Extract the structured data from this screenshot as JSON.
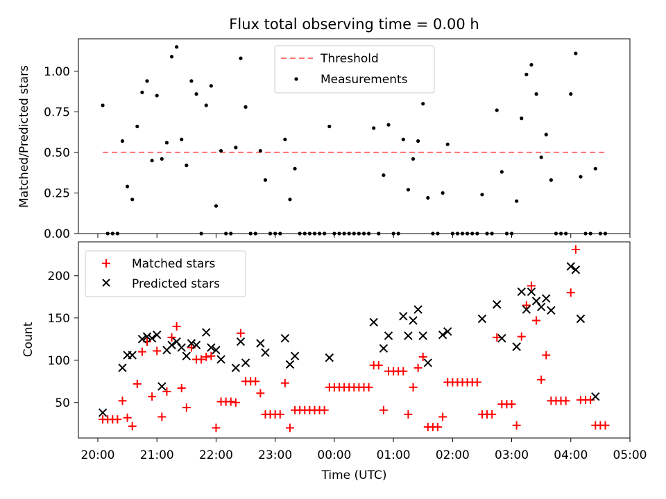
{
  "chart_data": [
    {
      "type": "scatter",
      "title": "Flux total observing time = 0.00 h",
      "ylabel": "Matched/Predicted stars",
      "ylim": [
        0,
        1.2
      ],
      "yticks": [
        "0.00",
        "0.25",
        "0.50",
        "0.75",
        "1.00"
      ],
      "threshold": 0.5,
      "legend": {
        "placement": "upper-center",
        "entries": [
          "Threshold",
          "Measurements"
        ]
      },
      "series": [
        {
          "name": "Measurements",
          "points": [
            [
              "20:05",
              0.79
            ],
            [
              "20:10",
              0
            ],
            [
              "20:15",
              0
            ],
            [
              "20:20",
              0
            ],
            [
              "20:25",
              0.57
            ],
            [
              "20:30",
              0.29
            ],
            [
              "20:35",
              0.21
            ],
            [
              "20:40",
              0.66
            ],
            [
              "20:45",
              0.87
            ],
            [
              "20:50",
              0.94
            ],
            [
              "20:55",
              0.45
            ],
            [
              "21:00",
              0.85
            ],
            [
              "21:05",
              0.46
            ],
            [
              "21:10",
              0.56
            ],
            [
              "21:15",
              1.09
            ],
            [
              "21:20",
              1.15
            ],
            [
              "21:25",
              0.58
            ],
            [
              "21:30",
              0.42
            ],
            [
              "21:35",
              0.94
            ],
            [
              "21:40",
              0.86
            ],
            [
              "21:45",
              0
            ],
            [
              "21:50",
              0.79
            ],
            [
              "21:55",
              0.91
            ],
            [
              "22:00",
              0.17
            ],
            [
              "22:05",
              0.51
            ],
            [
              "22:10",
              0
            ],
            [
              "22:15",
              0
            ],
            [
              "22:20",
              0.53
            ],
            [
              "22:25",
              1.08
            ],
            [
              "22:30",
              0.78
            ],
            [
              "22:35",
              0
            ],
            [
              "22:40",
              0
            ],
            [
              "22:45",
              0.51
            ],
            [
              "22:50",
              0.33
            ],
            [
              "22:55",
              0
            ],
            [
              "23:00",
              0
            ],
            [
              "23:05",
              0
            ],
            [
              "23:10",
              0.58
            ],
            [
              "23:15",
              0.21
            ],
            [
              "23:20",
              0.4
            ],
            [
              "23:25",
              0
            ],
            [
              "23:30",
              0
            ],
            [
              "23:35",
              0
            ],
            [
              "23:40",
              0
            ],
            [
              "23:45",
              0
            ],
            [
              "23:50",
              0
            ],
            [
              "23:55",
              0.66
            ],
            [
              "00:00",
              0
            ],
            [
              "00:05",
              0
            ],
            [
              "00:10",
              0
            ],
            [
              "00:15",
              0
            ],
            [
              "00:20",
              0
            ],
            [
              "00:25",
              0
            ],
            [
              "00:30",
              0
            ],
            [
              "00:35",
              0
            ],
            [
              "00:40",
              0.65
            ],
            [
              "00:45",
              0
            ],
            [
              "00:50",
              0.36
            ],
            [
              "00:55",
              0.67
            ],
            [
              "01:00",
              0
            ],
            [
              "01:05",
              0
            ],
            [
              "01:10",
              0.58
            ],
            [
              "01:15",
              0.27
            ],
            [
              "01:20",
              0.46
            ],
            [
              "01:25",
              0.57
            ],
            [
              "01:30",
              0.8
            ],
            [
              "01:35",
              0.22
            ],
            [
              "01:40",
              0
            ],
            [
              "01:45",
              0
            ],
            [
              "01:50",
              0.25
            ],
            [
              "01:55",
              0.55
            ],
            [
              "02:00",
              0
            ],
            [
              "02:05",
              0
            ],
            [
              "02:10",
              0
            ],
            [
              "02:15",
              0
            ],
            [
              "02:20",
              0
            ],
            [
              "02:25",
              0
            ],
            [
              "02:30",
              0.24
            ],
            [
              "02:35",
              0
            ],
            [
              "02:40",
              0
            ],
            [
              "02:45",
              0.76
            ],
            [
              "02:50",
              0.38
            ],
            [
              "02:55",
              0
            ],
            [
              "03:00",
              0
            ],
            [
              "03:05",
              0.2
            ],
            [
              "03:10",
              0.71
            ],
            [
              "03:15",
              0.98
            ],
            [
              "03:20",
              1.04
            ],
            [
              "03:25",
              0.86
            ],
            [
              "03:30",
              0.47
            ],
            [
              "03:35",
              0.61
            ],
            [
              "03:40",
              0.33
            ],
            [
              "03:45",
              0
            ],
            [
              "03:50",
              0
            ],
            [
              "03:55",
              0
            ],
            [
              "04:00",
              0.86
            ],
            [
              "04:05",
              1.11
            ],
            [
              "04:10",
              0.35
            ],
            [
              "04:15",
              0
            ],
            [
              "04:20",
              0
            ],
            [
              "04:25",
              0.4
            ],
            [
              "04:30",
              0
            ],
            [
              "04:35",
              0
            ]
          ]
        }
      ]
    },
    {
      "type": "scatter",
      "xlabel": "Time (UTC)",
      "ylabel": "Count",
      "ylim": [
        8,
        240
      ],
      "yticks": [
        "50",
        "100",
        "150",
        "200"
      ],
      "legend": {
        "placement": "upper-left",
        "entries": [
          "Matched stars",
          "Predicted stars"
        ]
      },
      "x_tick_labels": [
        "20:00",
        "21:00",
        "22:00",
        "23:00",
        "00:00",
        "01:00",
        "02:00",
        "03:00",
        "04:00",
        "05:00"
      ],
      "series": [
        {
          "name": "Matched stars",
          "color": "#ff0000",
          "points": [
            [
              "20:05",
              30
            ],
            [
              "20:10",
              30
            ],
            [
              "20:15",
              30
            ],
            [
              "20:20",
              30
            ],
            [
              "20:25",
              52
            ],
            [
              "20:30",
              32
            ],
            [
              "20:35",
              22
            ],
            [
              "20:40",
              72
            ],
            [
              "20:45",
              110
            ],
            [
              "20:50",
              122
            ],
            [
              "20:55",
              57
            ],
            [
              "21:00",
              111
            ],
            [
              "21:05",
              33
            ],
            [
              "21:10",
              63
            ],
            [
              "21:15",
              127
            ],
            [
              "21:20",
              140
            ],
            [
              "21:25",
              67
            ],
            [
              "21:30",
              44
            ],
            [
              "21:35",
              115
            ],
            [
              "21:40",
              101
            ],
            [
              "21:45",
              101
            ],
            [
              "21:50",
              104
            ],
            [
              "21:55",
              105
            ],
            [
              "22:00",
              20
            ],
            [
              "22:05",
              51
            ],
            [
              "22:10",
              51
            ],
            [
              "22:15",
              51
            ],
            [
              "22:20",
              50
            ],
            [
              "22:25",
              132
            ],
            [
              "22:30",
              75
            ],
            [
              "22:35",
              75
            ],
            [
              "22:40",
              75
            ],
            [
              "22:45",
              61
            ],
            [
              "22:50",
              36
            ],
            [
              "22:55",
              36
            ],
            [
              "23:00",
              36
            ],
            [
              "23:05",
              36
            ],
            [
              "23:10",
              73
            ],
            [
              "23:15",
              20
            ],
            [
              "23:20",
              41
            ],
            [
              "23:25",
              41
            ],
            [
              "23:30",
              41
            ],
            [
              "23:35",
              41
            ],
            [
              "23:40",
              41
            ],
            [
              "23:45",
              41
            ],
            [
              "23:50",
              41
            ],
            [
              "23:55",
              68
            ],
            [
              "00:00",
              68
            ],
            [
              "00:05",
              68
            ],
            [
              "00:10",
              68
            ],
            [
              "00:15",
              68
            ],
            [
              "00:20",
              68
            ],
            [
              "00:25",
              68
            ],
            [
              "00:30",
              68
            ],
            [
              "00:35",
              68
            ],
            [
              "00:40",
              94
            ],
            [
              "00:45",
              94
            ],
            [
              "00:50",
              41
            ],
            [
              "00:55",
              87
            ],
            [
              "01:00",
              87
            ],
            [
              "01:05",
              87
            ],
            [
              "01:10",
              87
            ],
            [
              "01:15",
              36
            ],
            [
              "01:20",
              68
            ],
            [
              "01:25",
              91
            ],
            [
              "01:30",
              104
            ],
            [
              "01:35",
              21
            ],
            [
              "01:40",
              21
            ],
            [
              "01:45",
              21
            ],
            [
              "01:50",
              33
            ],
            [
              "01:55",
              74
            ],
            [
              "02:00",
              74
            ],
            [
              "02:05",
              74
            ],
            [
              "02:10",
              74
            ],
            [
              "02:15",
              74
            ],
            [
              "02:20",
              74
            ],
            [
              "02:25",
              74
            ],
            [
              "02:30",
              36
            ],
            [
              "02:35",
              36
            ],
            [
              "02:40",
              36
            ],
            [
              "02:45",
              127
            ],
            [
              "02:50",
              48
            ],
            [
              "02:55",
              48
            ],
            [
              "03:00",
              48
            ],
            [
              "03:05",
              23
            ],
            [
              "03:10",
              128
            ],
            [
              "03:15",
              165
            ],
            [
              "03:20",
              188
            ],
            [
              "03:25",
              147
            ],
            [
              "03:30",
              77
            ],
            [
              "03:35",
              106
            ],
            [
              "03:40",
              52
            ],
            [
              "03:45",
              52
            ],
            [
              "03:50",
              52
            ],
            [
              "03:55",
              52
            ],
            [
              "04:00",
              180
            ],
            [
              "04:05",
              231
            ],
            [
              "04:10",
              53
            ],
            [
              "04:15",
              53
            ],
            [
              "04:20",
              53
            ],
            [
              "04:25",
              23
            ],
            [
              "04:30",
              23
            ],
            [
              "04:35",
              23
            ]
          ]
        },
        {
          "name": "Predicted stars",
          "color": "#000000",
          "points": [
            [
              "20:05",
              38
            ],
            [
              "20:25",
              91
            ],
            [
              "20:30",
              106
            ],
            [
              "20:35",
              106
            ],
            [
              "20:45",
              125
            ],
            [
              "20:50",
              128
            ],
            [
              "20:55",
              126
            ],
            [
              "21:00",
              130
            ],
            [
              "21:05",
              69
            ],
            [
              "21:10",
              112
            ],
            [
              "21:15",
              118
            ],
            [
              "21:20",
              122
            ],
            [
              "21:25",
              115
            ],
            [
              "21:30",
              105
            ],
            [
              "21:35",
              120
            ],
            [
              "21:40",
              118
            ],
            [
              "21:50",
              133
            ],
            [
              "21:55",
              115
            ],
            [
              "22:00",
              112
            ],
            [
              "22:05",
              101
            ],
            [
              "22:20",
              91
            ],
            [
              "22:25",
              122
            ],
            [
              "22:30",
              97
            ],
            [
              "22:45",
              120
            ],
            [
              "22:50",
              109
            ],
            [
              "23:10",
              126
            ],
            [
              "23:15",
              95
            ],
            [
              "23:20",
              105
            ],
            [
              "23:55",
              103
            ],
            [
              "00:40",
              145
            ],
            [
              "00:50",
              114
            ],
            [
              "00:55",
              129
            ],
            [
              "01:10",
              152
            ],
            [
              "01:15",
              129
            ],
            [
              "01:20",
              147
            ],
            [
              "01:25",
              160
            ],
            [
              "01:30",
              129
            ],
            [
              "01:35",
              97
            ],
            [
              "01:50",
              130
            ],
            [
              "01:55",
              134
            ],
            [
              "02:30",
              149
            ],
            [
              "02:45",
              166
            ],
            [
              "02:50",
              126
            ],
            [
              "03:05",
              116
            ],
            [
              "03:10",
              181
            ],
            [
              "03:15",
              160
            ],
            [
              "03:20",
              181
            ],
            [
              "03:25",
              170
            ],
            [
              "03:30",
              163
            ],
            [
              "03:35",
              173
            ],
            [
              "03:40",
              159
            ],
            [
              "04:00",
              211
            ],
            [
              "04:05",
              207
            ],
            [
              "04:10",
              149
            ],
            [
              "04:25",
              57
            ]
          ]
        }
      ]
    }
  ]
}
